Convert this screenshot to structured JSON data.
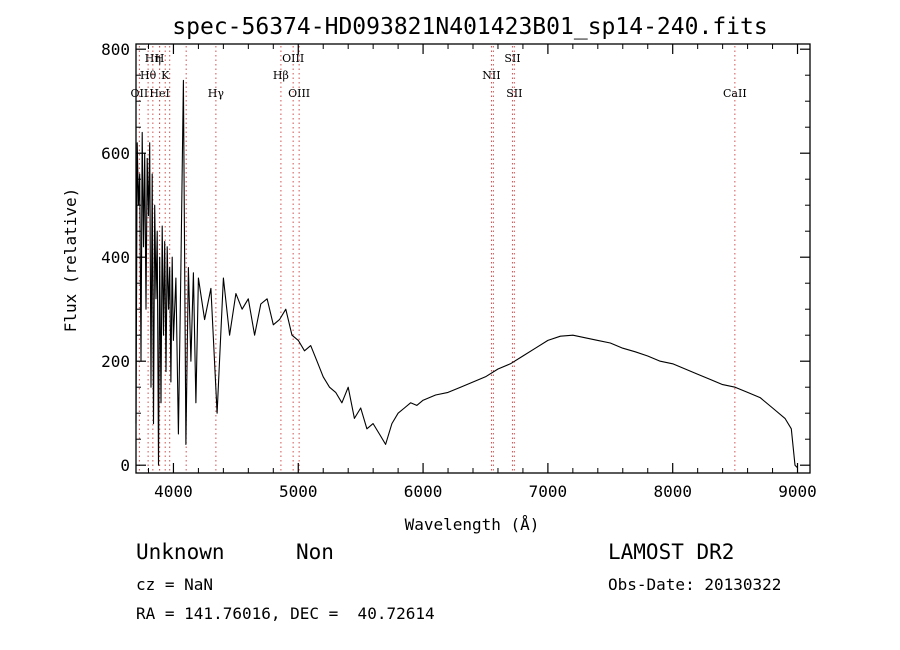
{
  "chart_data": {
    "type": "line",
    "title": "spec-56374-HD093821N401423B01_sp14-240.fits",
    "xlabel": "Wavelength (Å)",
    "ylabel": "Flux (relative)",
    "xlim": [
      3700,
      9100
    ],
    "ylim": [
      -15,
      810
    ],
    "x_ticks": [
      "4000",
      "5000",
      "6000",
      "7000",
      "8000",
      "9000"
    ],
    "y_ticks": [
      "0",
      "200",
      "400",
      "600",
      "800"
    ],
    "grid": false,
    "line_color": "#000000",
    "marker_color": "#d45050",
    "spectrum": {
      "x": [
        3700,
        3710,
        3720,
        3730,
        3740,
        3750,
        3760,
        3770,
        3780,
        3790,
        3800,
        3810,
        3820,
        3830,
        3840,
        3850,
        3860,
        3870,
        3880,
        3890,
        3900,
        3910,
        3920,
        3930,
        3940,
        3950,
        3960,
        3970,
        3980,
        3990,
        4000,
        4020,
        4040,
        4060,
        4080,
        4100,
        4120,
        4140,
        4160,
        4180,
        4200,
        4250,
        4300,
        4350,
        4400,
        4450,
        4500,
        4550,
        4600,
        4650,
        4700,
        4750,
        4800,
        4850,
        4900,
        4950,
        5000,
        5050,
        5100,
        5150,
        5200,
        5250,
        5300,
        5350,
        5400,
        5450,
        5500,
        5550,
        5600,
        5650,
        5700,
        5750,
        5800,
        5850,
        5900,
        5950,
        6000,
        6100,
        6200,
        6300,
        6400,
        6500,
        6600,
        6700,
        6800,
        6900,
        7000,
        7100,
        7200,
        7300,
        7400,
        7500,
        7600,
        7700,
        7800,
        7900,
        8000,
        8100,
        8200,
        8300,
        8400,
        8500,
        8600,
        8700,
        8800,
        8900,
        8950,
        8980,
        9000
      ],
      "y": [
        80,
        620,
        500,
        560,
        200,
        640,
        420,
        600,
        300,
        590,
        480,
        620,
        150,
        560,
        80,
        500,
        320,
        450,
        0,
        400,
        120,
        460,
        250,
        430,
        180,
        420,
        300,
        380,
        160,
        400,
        240,
        360,
        60,
        380,
        740,
        40,
        380,
        200,
        370,
        120,
        360,
        280,
        340,
        100,
        360,
        250,
        330,
        300,
        320,
        250,
        310,
        320,
        270,
        280,
        300,
        250,
        240,
        220,
        230,
        200,
        170,
        150,
        140,
        120,
        150,
        90,
        110,
        70,
        80,
        60,
        40,
        80,
        100,
        110,
        120,
        115,
        125,
        135,
        140,
        150,
        160,
        170,
        185,
        195,
        210,
        225,
        240,
        248,
        250,
        245,
        240,
        235,
        225,
        218,
        210,
        200,
        195,
        185,
        175,
        165,
        155,
        150,
        140,
        130,
        110,
        90,
        70,
        0,
        -5
      ]
    },
    "lines": [
      {
        "label": "Hη",
        "x": 3835,
        "row": 0
      },
      {
        "label": "H",
        "x": 3889,
        "row": 0
      },
      {
        "label": "OIII",
        "x": 4959,
        "row": 0
      },
      {
        "label": "SII",
        "x": 6716,
        "row": 0
      },
      {
        "label": "Hθ",
        "x": 3797,
        "row": 1
      },
      {
        "label": "K",
        "x": 3934,
        "row": 1
      },
      {
        "label": "Hβ",
        "x": 4861,
        "row": 1
      },
      {
        "label": "NII",
        "x": 6548,
        "row": 1
      },
      {
        "label": "OII",
        "x": 3727,
        "row": 2
      },
      {
        "label": "HeI",
        "x": 3889,
        "row": 2
      },
      {
        "label": "Hγ",
        "x": 4340,
        "row": 2
      },
      {
        "label": "OIII",
        "x": 5007,
        "row": 2
      },
      {
        "label": "SII",
        "x": 6731,
        "row": 2
      },
      {
        "label": "CaII",
        "x": 8498,
        "row": 2
      }
    ],
    "extra_marker_lines": [
      3970,
      4102,
      6563
    ]
  },
  "info": {
    "class": "Unknown",
    "subclass": "Non",
    "survey": "LAMOST DR2",
    "cz": "cz = NaN",
    "obs_date": "Obs-Date: 20130322",
    "coords": "RA = 141.76016, DEC =  40.72614"
  }
}
